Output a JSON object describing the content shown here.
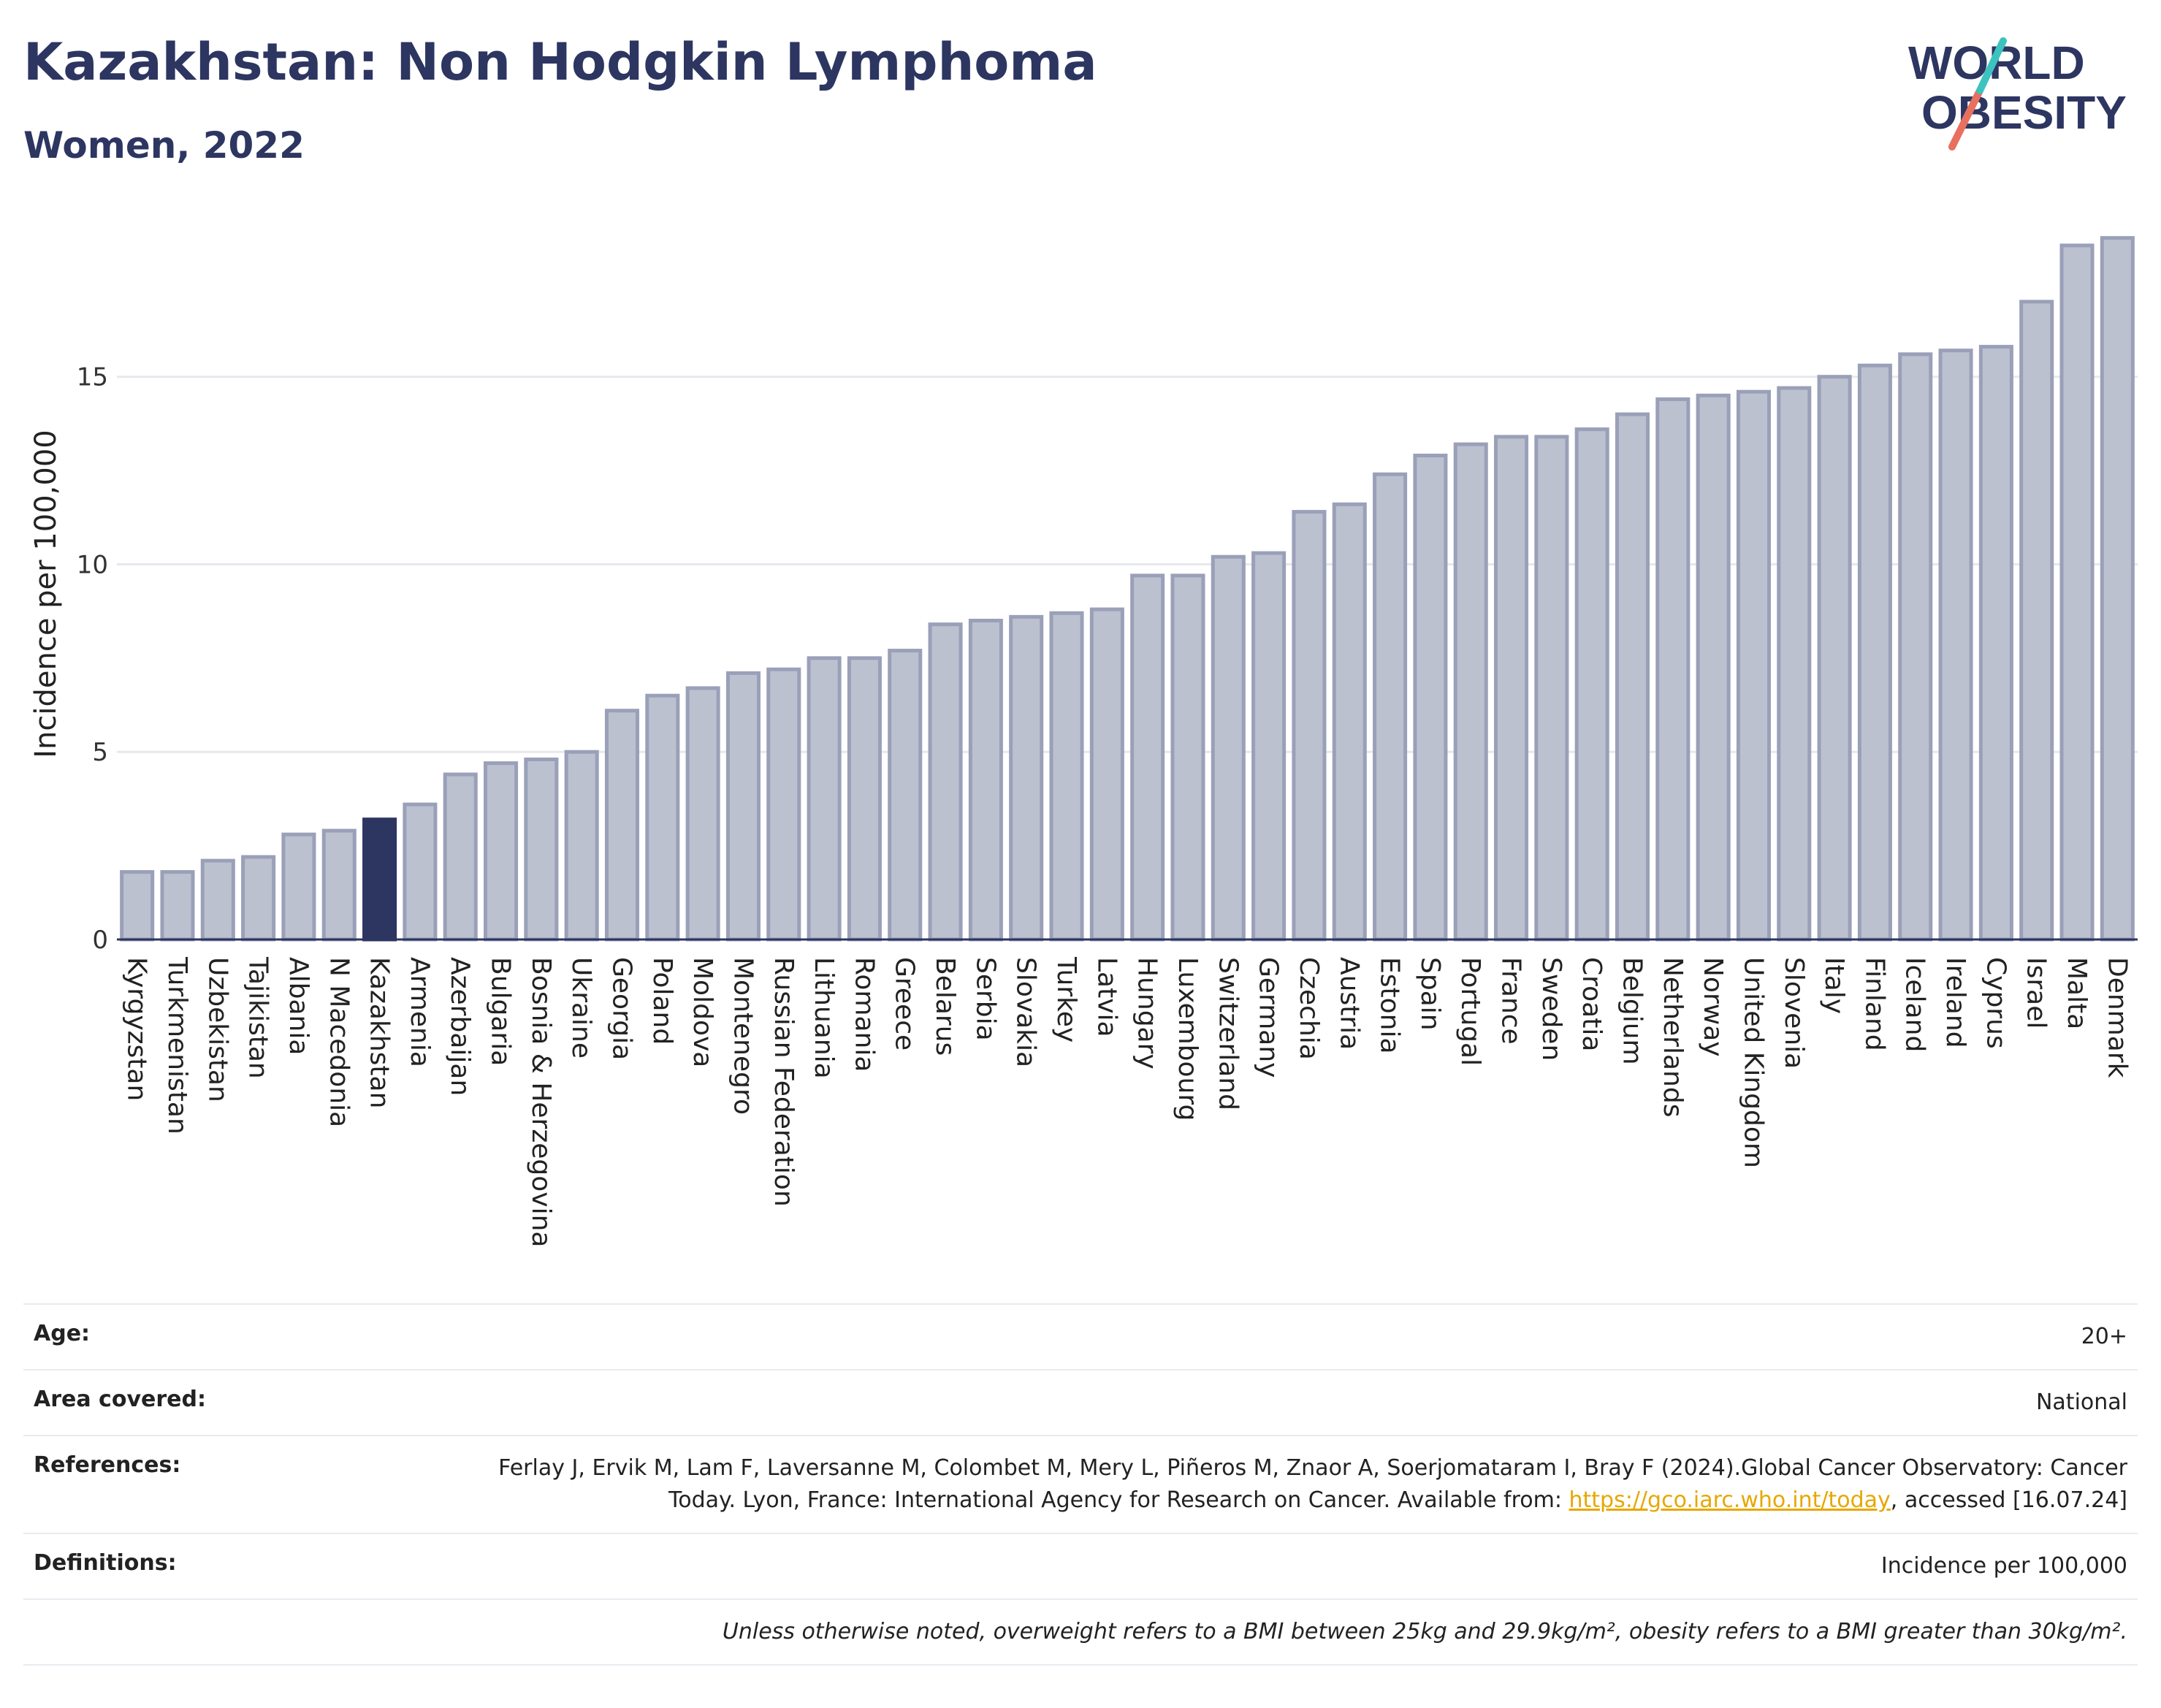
{
  "header": {
    "title": "Kazakhstan: Non Hodgkin Lymphoma",
    "subtitle": "Women, 2022"
  },
  "logo": {
    "line1": "WORLD",
    "line2": "OBESITY"
  },
  "colors": {
    "bar": "#bcc1d0",
    "bar_border": "#9aa0b8",
    "highlight": "#2d3561",
    "grid": "#e6e8ee",
    "title": "#2d3561"
  },
  "chart_data": {
    "type": "bar",
    "title": "Kazakhstan: Non Hodgkin Lymphoma",
    "subtitle": "Women, 2022",
    "ylabel": "Incidence per 100,000",
    "xlabel": "",
    "ylim": [
      0,
      19.2
    ],
    "yticks": [
      0,
      5,
      10,
      15
    ],
    "grid": true,
    "highlight": "Kazakhstan",
    "categories": [
      "Kyrgyzstan",
      "Turkmenistan",
      "Uzbekistan",
      "Tajikistan",
      "Albania",
      "N Macedonia",
      "Kazakhstan",
      "Armenia",
      "Azerbaijan",
      "Bulgaria",
      "Bosnia & Herzegovina",
      "Ukraine",
      "Georgia",
      "Poland",
      "Moldova",
      "Montenegro",
      "Russian Federation",
      "Lithuania",
      "Romania",
      "Greece",
      "Belarus",
      "Serbia",
      "Slovakia",
      "Turkey",
      "Latvia",
      "Hungary",
      "Luxembourg",
      "Switzerland",
      "Germany",
      "Czechia",
      "Austria",
      "Estonia",
      "Spain",
      "Portugal",
      "France",
      "Sweden",
      "Croatia",
      "Belgium",
      "Netherlands",
      "Norway",
      "United Kingdom",
      "Slovenia",
      "Italy",
      "Finland",
      "Iceland",
      "Ireland",
      "Cyprus",
      "Israel",
      "Malta",
      "Denmark"
    ],
    "values": [
      1.8,
      1.8,
      2.1,
      2.2,
      2.8,
      2.9,
      3.2,
      3.6,
      4.4,
      4.7,
      4.8,
      5.0,
      6.1,
      6.5,
      6.7,
      7.1,
      7.2,
      7.5,
      7.5,
      7.7,
      8.4,
      8.5,
      8.6,
      8.7,
      8.8,
      9.7,
      9.7,
      10.2,
      10.3,
      11.4,
      11.6,
      12.4,
      12.9,
      13.2,
      13.4,
      13.4,
      13.6,
      14.0,
      14.4,
      14.5,
      14.6,
      14.7,
      15.0,
      15.3,
      15.6,
      15.7,
      15.8,
      17.0,
      18.5,
      18.7
    ]
  },
  "info": {
    "age_label": "Age:",
    "age_value": "20+",
    "area_label": "Area covered:",
    "area_value": "National",
    "references_label": "References:",
    "references_text": "Ferlay J, Ervik M, Lam F, Laversanne M, Colombet M, Mery L, Piñeros M, Znaor A, Soerjomataram I, Bray F (2024).Global Cancer Observatory: Cancer Today. Lyon, France: International Agency for Research on Cancer. Available from:",
    "references_link": "https://gco.iarc.who.int/today",
    "references_suffix": ", accessed [16.07.24]",
    "definitions_label": "Definitions:",
    "definitions_value": "Incidence per 100,000",
    "note": "Unless otherwise noted, overweight refers to a BMI between 25kg and 29.9kg/m², obesity refers to a BMI greater than 30kg/m²."
  }
}
